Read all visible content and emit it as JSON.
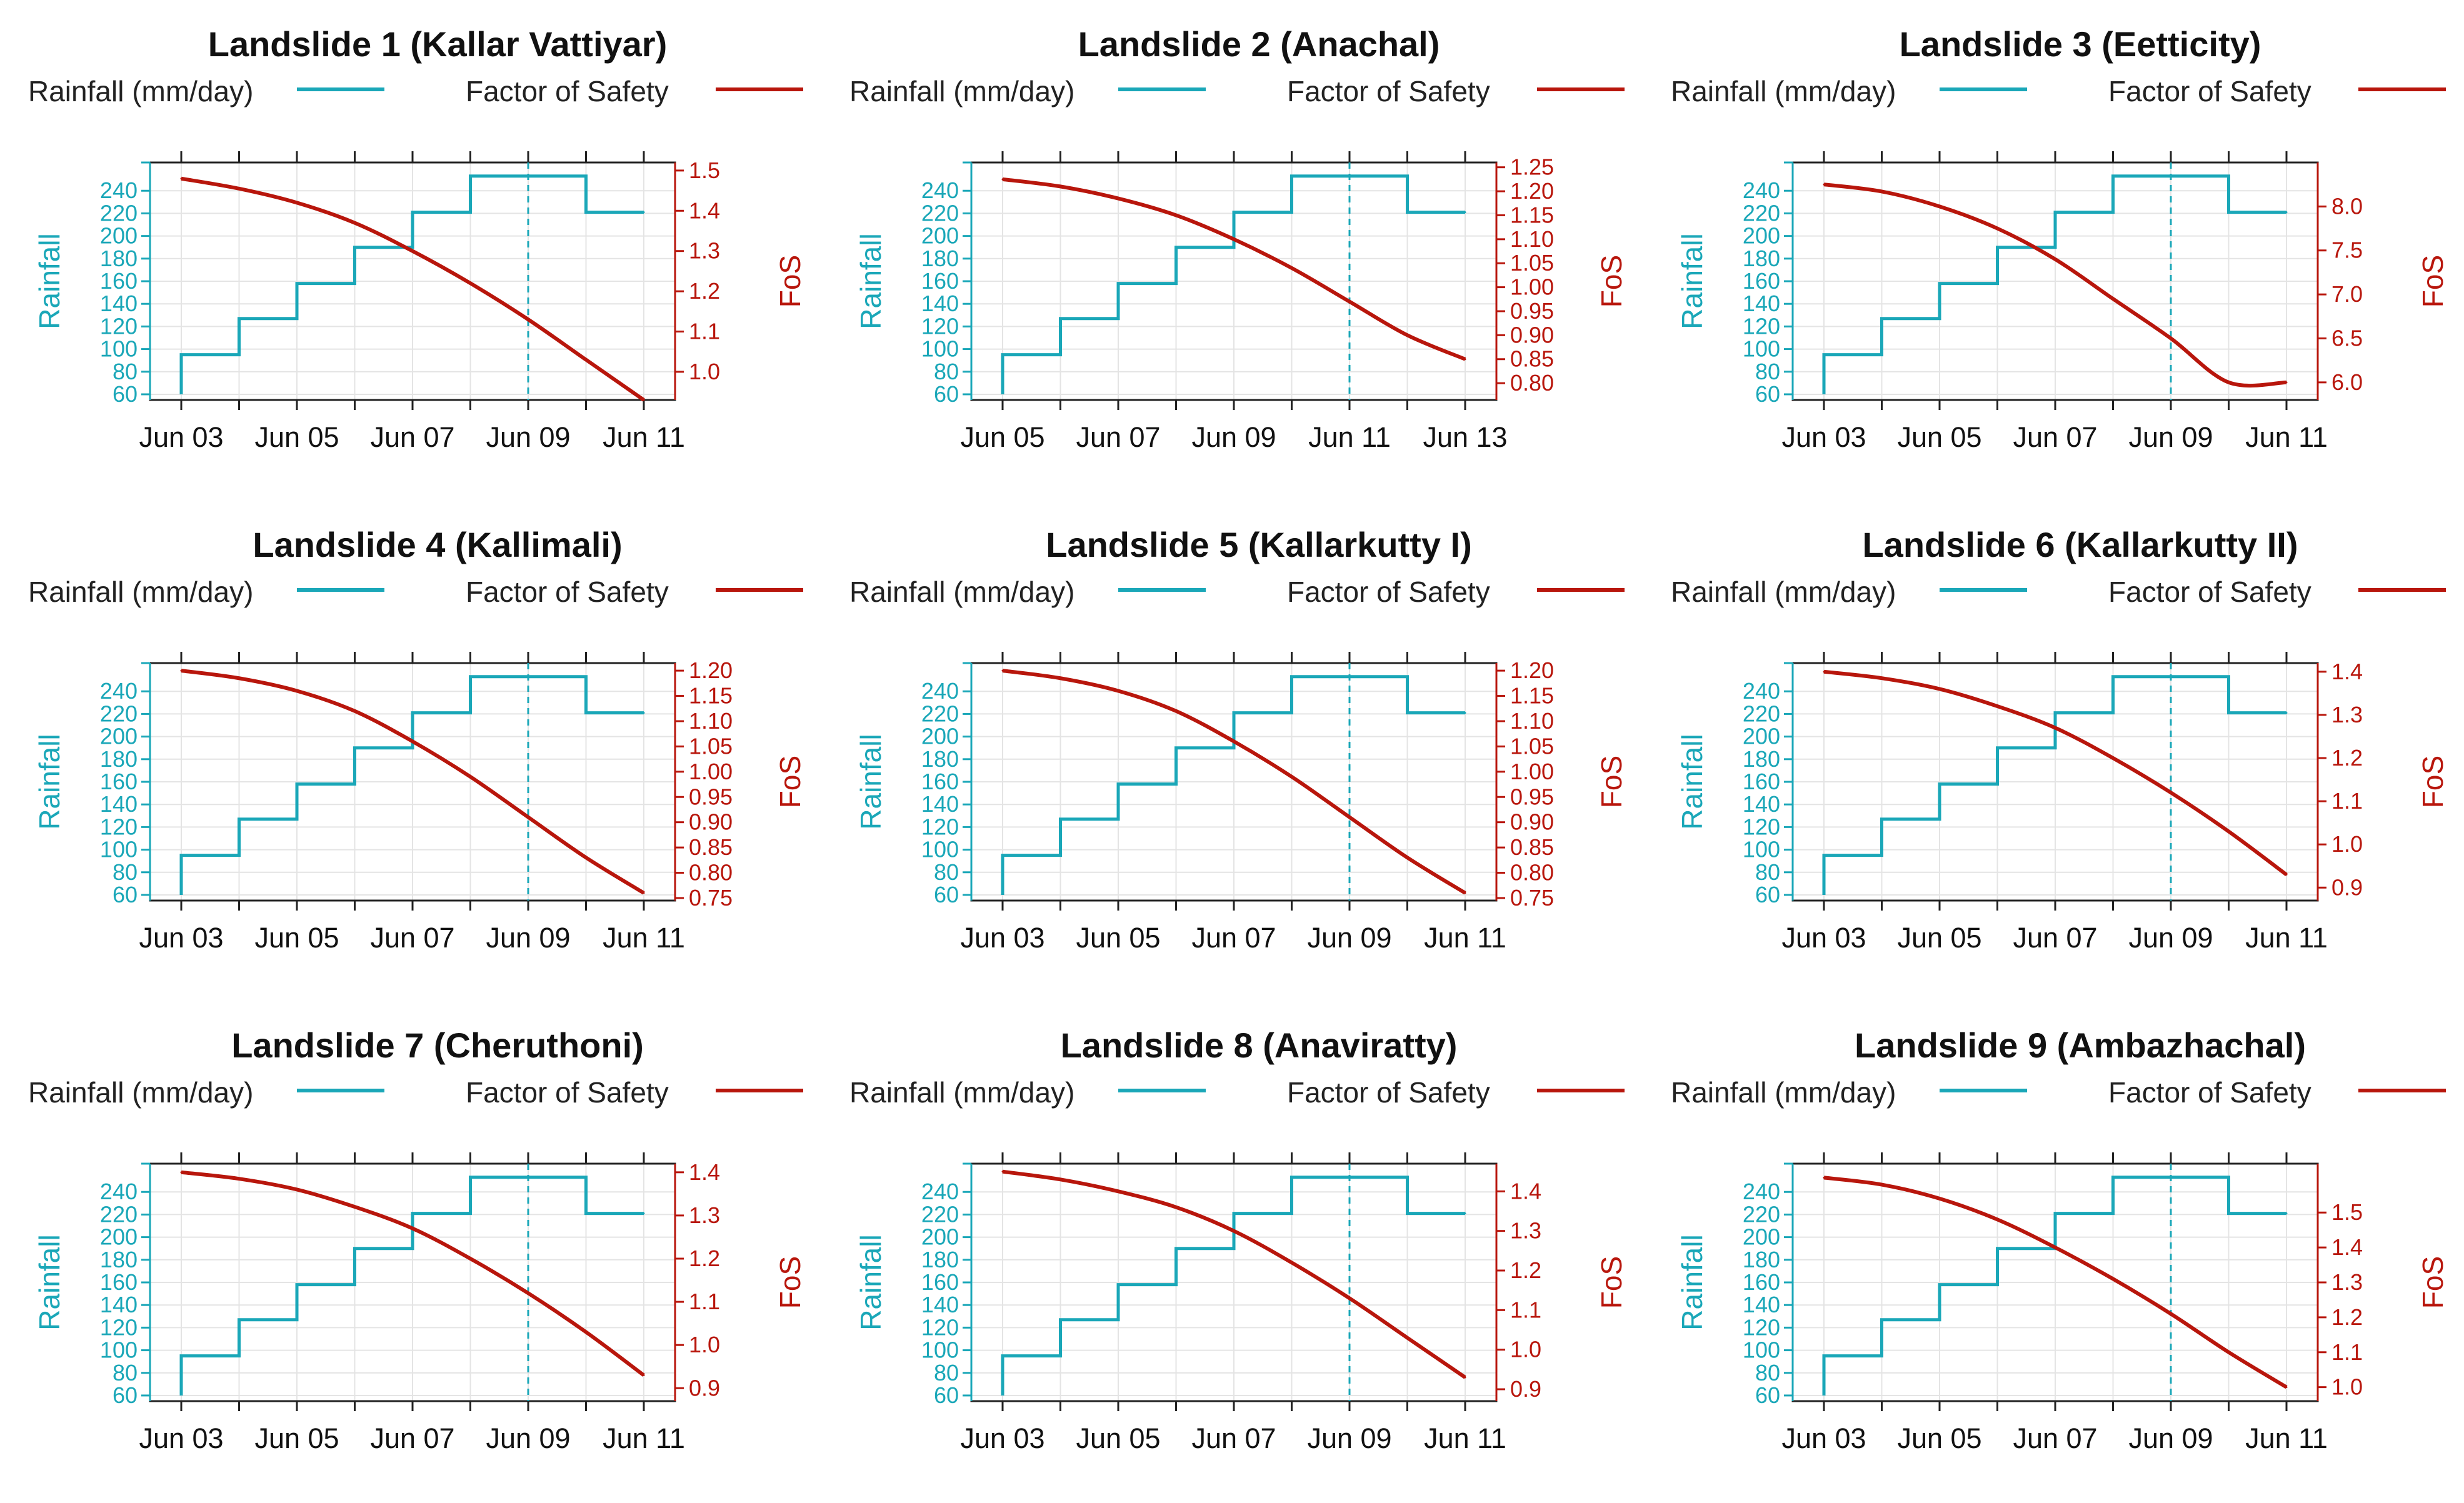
{
  "colors": {
    "rain": "#1aa7b8",
    "fos": "#b8160c",
    "axis": "#222222",
    "grid": "#e4e4e4"
  },
  "legend": {
    "rain_label": "Rainfall (mm/day)",
    "fos_label": "Factor of Safety"
  },
  "axis_titles": {
    "left": "Rainfall",
    "right": "FoS"
  },
  "chart_data": [
    {
      "type": "line",
      "title": "Landslide 1 (Kallar Vattiyar)",
      "x": [
        "Jun 03",
        "Jun 04",
        "Jun 05",
        "Jun 06",
        "Jun 07",
        "Jun 08",
        "Jun 09",
        "Jun 10",
        "Jun 11"
      ],
      "xtick_labels": [
        "Jun 03",
        "Jun 05",
        "Jun 07",
        "Jun 09",
        "Jun 11"
      ],
      "series": [
        {
          "name": "Rainfall (mm/day)",
          "axis": "left",
          "step": true,
          "values": [
            95,
            127,
            158,
            190,
            221,
            253,
            253,
            221,
            221
          ]
        },
        {
          "name": "Factor of Safety",
          "axis": "right",
          "values": [
            1.48,
            1.455,
            1.42,
            1.37,
            1.3,
            1.22,
            1.13,
            1.03,
            0.93
          ]
        }
      ],
      "ylim_left": [
        55,
        265
      ],
      "yticks_left": [
        60,
        80,
        100,
        120,
        140,
        160,
        180,
        200,
        220,
        240
      ],
      "ylim_right": [
        0.93,
        1.52
      ],
      "yticks_right": [
        "1.0",
        "1.1",
        "1.2",
        "1.3",
        "1.4",
        "1.5"
      ],
      "vline": "Jun 09"
    },
    {
      "type": "line",
      "title": "Landslide 2 (Anachal)",
      "x": [
        "Jun 05",
        "Jun 06",
        "Jun 07",
        "Jun 08",
        "Jun 09",
        "Jun 10",
        "Jun 11",
        "Jun 12",
        "Jun 13"
      ],
      "xtick_labels": [
        "Jun 05",
        "Jun 07",
        "Jun 09",
        "Jun 11",
        "Jun 13"
      ],
      "series": [
        {
          "name": "Rainfall (mm/day)",
          "axis": "left",
          "step": true,
          "values": [
            95,
            127,
            158,
            190,
            221,
            253,
            253,
            221,
            221
          ]
        },
        {
          "name": "Factor of Safety",
          "axis": "right",
          "values": [
            1.225,
            1.21,
            1.185,
            1.15,
            1.1,
            1.04,
            0.97,
            0.9,
            0.85
          ]
        }
      ],
      "ylim_left": [
        55,
        265
      ],
      "yticks_left": [
        60,
        80,
        100,
        120,
        140,
        160,
        180,
        200,
        220,
        240
      ],
      "ylim_right": [
        0.765,
        1.26
      ],
      "yticks_right": [
        "0.80",
        "0.85",
        "0.90",
        "0.95",
        "1.00",
        "1.05",
        "1.10",
        "1.15",
        "1.20",
        "1.25"
      ],
      "vline": "Jun 11"
    },
    {
      "type": "line",
      "title": "Landslide 3 (Eetticity)",
      "x": [
        "Jun 03",
        "Jun 04",
        "Jun 05",
        "Jun 06",
        "Jun 07",
        "Jun 08",
        "Jun 09",
        "Jun 10",
        "Jun 11"
      ],
      "xtick_labels": [
        "Jun 03",
        "Jun 05",
        "Jun 07",
        "Jun 09",
        "Jun 11"
      ],
      "series": [
        {
          "name": "Rainfall (mm/day)",
          "axis": "left",
          "step": true,
          "values": [
            95,
            127,
            158,
            190,
            221,
            253,
            253,
            221,
            221
          ]
        },
        {
          "name": "Factor of Safety",
          "axis": "right",
          "values": [
            8.25,
            8.17,
            8.0,
            7.75,
            7.4,
            6.95,
            6.5,
            6.0,
            6.0
          ]
        }
      ],
      "ylim_left": [
        55,
        265
      ],
      "yticks_left": [
        60,
        80,
        100,
        120,
        140,
        160,
        180,
        200,
        220,
        240
      ],
      "ylim_right": [
        5.8,
        8.5
      ],
      "yticks_right": [
        "6.0",
        "6.5",
        "7.0",
        "7.5",
        "8.0"
      ],
      "vline": "Jun 09"
    },
    {
      "type": "line",
      "title": "Landslide 4 (Kallimali)",
      "x": [
        "Jun 03",
        "Jun 04",
        "Jun 05",
        "Jun 06",
        "Jun 07",
        "Jun 08",
        "Jun 09",
        "Jun 10",
        "Jun 11"
      ],
      "xtick_labels": [
        "Jun 03",
        "Jun 05",
        "Jun 07",
        "Jun 09",
        "Jun 11"
      ],
      "series": [
        {
          "name": "Rainfall (mm/day)",
          "axis": "left",
          "step": true,
          "values": [
            95,
            127,
            158,
            190,
            221,
            253,
            253,
            221,
            221
          ]
        },
        {
          "name": "Factor of Safety",
          "axis": "right",
          "values": [
            1.2,
            1.185,
            1.16,
            1.12,
            1.06,
            0.99,
            0.91,
            0.83,
            0.76
          ]
        }
      ],
      "ylim_left": [
        55,
        265
      ],
      "yticks_left": [
        60,
        80,
        100,
        120,
        140,
        160,
        180,
        200,
        220,
        240
      ],
      "ylim_right": [
        0.745,
        1.215
      ],
      "yticks_right": [
        "0.75",
        "0.80",
        "0.85",
        "0.90",
        "0.95",
        "1.00",
        "1.05",
        "1.10",
        "1.15",
        "1.20"
      ],
      "vline": "Jun 09"
    },
    {
      "type": "line",
      "title": "Landslide 5 (Kallarkutty I)",
      "x": [
        "Jun 03",
        "Jun 04",
        "Jun 05",
        "Jun 06",
        "Jun 07",
        "Jun 08",
        "Jun 09",
        "Jun 10",
        "Jun 11"
      ],
      "xtick_labels": [
        "Jun 03",
        "Jun 05",
        "Jun 07",
        "Jun 09",
        "Jun 11"
      ],
      "series": [
        {
          "name": "Rainfall (mm/day)",
          "axis": "left",
          "step": true,
          "values": [
            95,
            127,
            158,
            190,
            221,
            253,
            253,
            221,
            221
          ]
        },
        {
          "name": "Factor of Safety",
          "axis": "right",
          "values": [
            1.2,
            1.185,
            1.16,
            1.12,
            1.06,
            0.99,
            0.91,
            0.83,
            0.76
          ]
        }
      ],
      "ylim_left": [
        55,
        265
      ],
      "yticks_left": [
        60,
        80,
        100,
        120,
        140,
        160,
        180,
        200,
        220,
        240
      ],
      "ylim_right": [
        0.745,
        1.215
      ],
      "yticks_right": [
        "0.75",
        "0.80",
        "0.85",
        "0.90",
        "0.95",
        "1.00",
        "1.05",
        "1.10",
        "1.15",
        "1.20"
      ],
      "vline": "Jun 09"
    },
    {
      "type": "line",
      "title": "Landslide 6 (Kallarkutty II)",
      "x": [
        "Jun 03",
        "Jun 04",
        "Jun 05",
        "Jun 06",
        "Jun 07",
        "Jun 08",
        "Jun 09",
        "Jun 10",
        "Jun 11"
      ],
      "xtick_labels": [
        "Jun 03",
        "Jun 05",
        "Jun 07",
        "Jun 09",
        "Jun 11"
      ],
      "series": [
        {
          "name": "Rainfall (mm/day)",
          "axis": "left",
          "step": true,
          "values": [
            95,
            127,
            158,
            190,
            221,
            253,
            253,
            221,
            221
          ]
        },
        {
          "name": "Factor of Safety",
          "axis": "right",
          "values": [
            1.4,
            1.385,
            1.36,
            1.32,
            1.27,
            1.2,
            1.12,
            1.03,
            0.93
          ]
        }
      ],
      "ylim_left": [
        55,
        265
      ],
      "yticks_left": [
        60,
        80,
        100,
        120,
        140,
        160,
        180,
        200,
        220,
        240
      ],
      "ylim_right": [
        0.87,
        1.42
      ],
      "yticks_right": [
        "0.9",
        "1.0",
        "1.1",
        "1.2",
        "1.3",
        "1.4"
      ],
      "vline": "Jun 09"
    },
    {
      "type": "line",
      "title": "Landslide 7 (Cheruthoni)",
      "x": [
        "Jun 03",
        "Jun 04",
        "Jun 05",
        "Jun 06",
        "Jun 07",
        "Jun 08",
        "Jun 09",
        "Jun 10",
        "Jun 11"
      ],
      "xtick_labels": [
        "Jun 03",
        "Jun 05",
        "Jun 07",
        "Jun 09",
        "Jun 11"
      ],
      "series": [
        {
          "name": "Rainfall (mm/day)",
          "axis": "left",
          "step": true,
          "values": [
            95,
            127,
            158,
            190,
            221,
            253,
            253,
            221,
            221
          ]
        },
        {
          "name": "Factor of Safety",
          "axis": "right",
          "values": [
            1.4,
            1.385,
            1.36,
            1.32,
            1.27,
            1.2,
            1.12,
            1.03,
            0.93
          ]
        }
      ],
      "ylim_left": [
        55,
        265
      ],
      "yticks_left": [
        60,
        80,
        100,
        120,
        140,
        160,
        180,
        200,
        220,
        240
      ],
      "ylim_right": [
        0.87,
        1.42
      ],
      "yticks_right": [
        "0.9",
        "1.0",
        "1.1",
        "1.2",
        "1.3",
        "1.4"
      ],
      "vline": "Jun 09"
    },
    {
      "type": "line",
      "title": "Landslide 8 (Anaviratty)",
      "x": [
        "Jun 03",
        "Jun 04",
        "Jun 05",
        "Jun 06",
        "Jun 07",
        "Jun 08",
        "Jun 09",
        "Jun 10",
        "Jun 11"
      ],
      "xtick_labels": [
        "Jun 03",
        "Jun 05",
        "Jun 07",
        "Jun 09",
        "Jun 11"
      ],
      "series": [
        {
          "name": "Rainfall (mm/day)",
          "axis": "left",
          "step": true,
          "values": [
            95,
            127,
            158,
            190,
            221,
            253,
            253,
            221,
            221
          ]
        },
        {
          "name": "Factor of Safety",
          "axis": "right",
          "values": [
            1.45,
            1.43,
            1.4,
            1.36,
            1.3,
            1.22,
            1.13,
            1.03,
            0.93
          ]
        }
      ],
      "ylim_left": [
        55,
        265
      ],
      "yticks_left": [
        60,
        80,
        100,
        120,
        140,
        160,
        180,
        200,
        220,
        240
      ],
      "ylim_right": [
        0.87,
        1.47
      ],
      "yticks_right": [
        "0.9",
        "1.0",
        "1.1",
        "1.2",
        "1.3",
        "1.4"
      ],
      "vline": "Jun 09"
    },
    {
      "type": "line",
      "title": "Landslide 9 (Ambazhachal)",
      "x": [
        "Jun 03",
        "Jun 04",
        "Jun 05",
        "Jun 06",
        "Jun 07",
        "Jun 08",
        "Jun 09",
        "Jun 10",
        "Jun 11"
      ],
      "xtick_labels": [
        "Jun 03",
        "Jun 05",
        "Jun 07",
        "Jun 09",
        "Jun 11"
      ],
      "series": [
        {
          "name": "Rainfall (mm/day)",
          "axis": "left",
          "step": true,
          "values": [
            95,
            127,
            158,
            190,
            221,
            253,
            253,
            221,
            221
          ]
        },
        {
          "name": "Factor of Safety",
          "axis": "right",
          "values": [
            1.6,
            1.58,
            1.54,
            1.48,
            1.4,
            1.31,
            1.21,
            1.1,
            1.0
          ]
        }
      ],
      "ylim_left": [
        55,
        265
      ],
      "yticks_left": [
        60,
        80,
        100,
        120,
        140,
        160,
        180,
        200,
        220,
        240
      ],
      "ylim_right": [
        0.96,
        1.64
      ],
      "yticks_right": [
        "1.0",
        "1.1",
        "1.2",
        "1.3",
        "1.4",
        "1.5"
      ],
      "vline": "Jun 09"
    }
  ]
}
